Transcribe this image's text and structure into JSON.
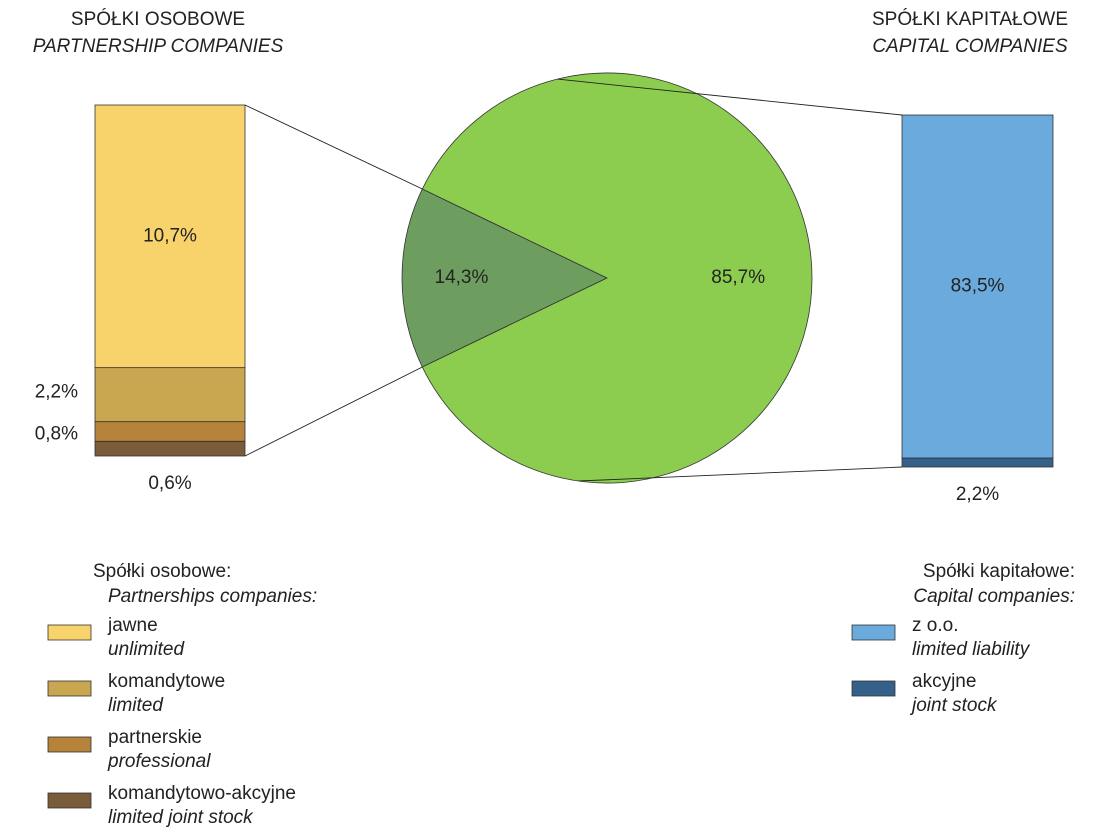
{
  "chart_data": [
    {
      "type": "stacked-bar",
      "title": "SPÓŁKI OSOBOWE",
      "subtitle": "PARTNERSHIP COMPANIES",
      "legend_title": "Spółki osobowe:",
      "legend_subtitle": "Partnerships companies:",
      "series": [
        {
          "name": "jawne",
          "subname": "unlimited",
          "color": "#f8d36c",
          "values": [
            10.7
          ],
          "value_labels": [
            "10,7%"
          ]
        },
        {
          "name": "komandytowe",
          "subname": "limited",
          "color": "#c9a650",
          "values": [
            2.2
          ],
          "value_labels": [
            "2,2%"
          ]
        },
        {
          "name": "partnerskie",
          "subname": "professional",
          "color": "#b5833a",
          "values": [
            0.8
          ],
          "value_labels": [
            "0,8%"
          ]
        },
        {
          "name": "komandytowo-akcyjne",
          "subname": "limited joint stock",
          "color": "#7a5b3a",
          "values": [
            0.6
          ],
          "value_labels": [
            "0,6%"
          ]
        }
      ]
    },
    {
      "type": "pie",
      "values": [
        14.3,
        85.7
      ],
      "value_labels": [
        "14,3%",
        "85,7%"
      ],
      "colors": [
        "#6e9e5f",
        "#8ccd50"
      ]
    },
    {
      "type": "stacked-bar",
      "title": "SPÓŁKI KAPITAŁOWE",
      "subtitle": "CAPITAL COMPANIES",
      "legend_title": "Spółki kapitałowe:",
      "legend_subtitle": "Capital companies:",
      "series": [
        {
          "name": "z o.o.",
          "subname": "limited liability",
          "color": "#6aaadc",
          "values": [
            83.5
          ],
          "value_labels": [
            "83,5%"
          ]
        },
        {
          "name": "akcyjne",
          "subname": "joint stock",
          "color": "#34608a",
          "values": [
            2.2
          ],
          "value_labels": [
            "2,2%"
          ]
        }
      ]
    }
  ]
}
